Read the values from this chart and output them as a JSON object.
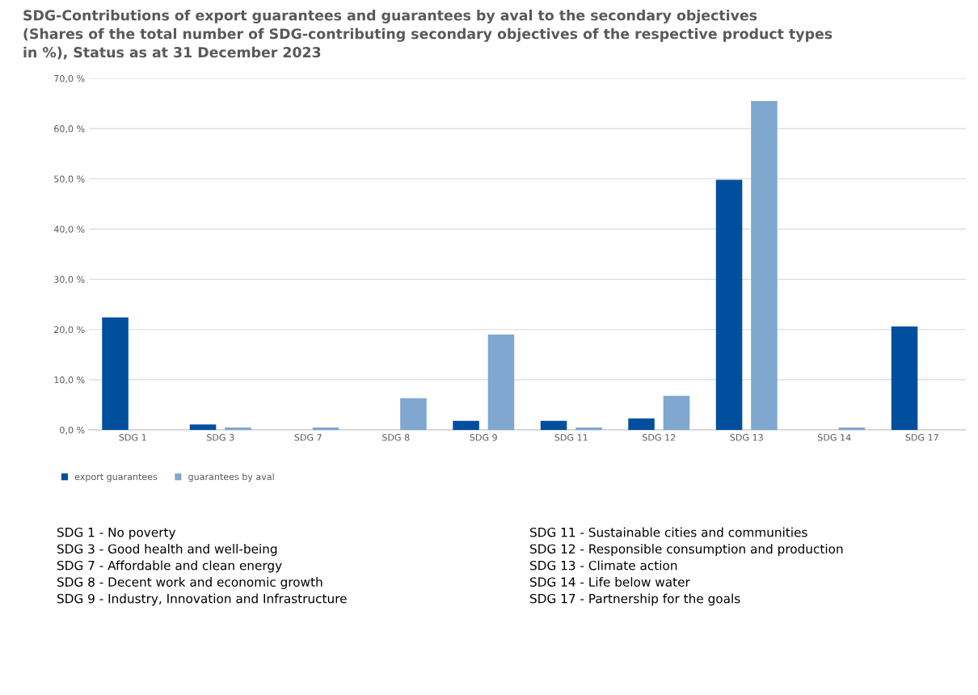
{
  "chart_data": {
    "type": "bar",
    "title": "SDG-Contributions of export guarantees and guarantees by aval to the secondary objectives\n(Shares of the total number of SDG-contributing secondary objectives of the respective product types\nin %), Status as at 31 December 2023",
    "categories": [
      "SDG 1",
      "SDG 3",
      "SDG 7",
      "SDG 8",
      "SDG 9",
      "SDG 11",
      "SDG 12",
      "SDG 13",
      "SDG 14",
      "SDG 17"
    ],
    "series": [
      {
        "name": "export guarantees",
        "color": "#004f9f",
        "values": [
          22.4,
          1.1,
          0,
          0,
          1.8,
          1.8,
          2.3,
          49.8,
          0,
          20.6
        ]
      },
      {
        "name": "guarantees by aval",
        "color": "#7fa7d0",
        "values": [
          0,
          0.5,
          0.5,
          6.3,
          19.0,
          0.5,
          6.8,
          65.5,
          0.5,
          0
        ]
      }
    ],
    "ylim": [
      0,
      70
    ],
    "yticks": [
      {
        "value": 0,
        "label": "0,0 %"
      },
      {
        "value": 10,
        "label": "10,0 %"
      },
      {
        "value": 20,
        "label": "20,0 %"
      },
      {
        "value": 30,
        "label": "30,0 %"
      },
      {
        "value": 40,
        "label": "40,0 %"
      },
      {
        "value": 50,
        "label": "50,0 %"
      },
      {
        "value": 60,
        "label": "60,0 %"
      },
      {
        "value": 70,
        "label": "70,0 %"
      }
    ],
    "grid": "y",
    "legend": "bottom left",
    "annotations": [
      "SDG 1 - No poverty",
      "SDG 3 - Good health and well-being",
      "SDG 7 - Affordable and clean energy",
      "SDG 8 - Decent work and economic growth",
      "SDG 9 - Industry, Innovation and Infrastructure",
      "SDG 11 - Sustainable cities and communities",
      "SDG 12 - Responsible consumption and production",
      "SDG 13 - Climate action",
      "SDG 14 - Life below water",
      "SDG 17 - Partnership for the goals"
    ]
  }
}
